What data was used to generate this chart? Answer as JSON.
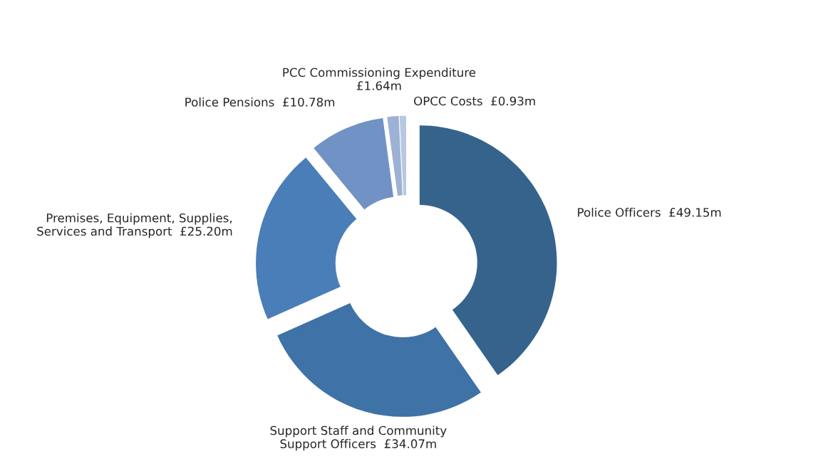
{
  "chart_data": {
    "type": "donut",
    "categories": [
      "Police Officers",
      "Support Staff and Community\nSupport Officers",
      "Premises, Equipment, Supplies,\nServices and Transport",
      "Police Pensions",
      "PCC Commissioning Expenditure",
      "OPCC Costs"
    ],
    "values": [
      49.15,
      34.07,
      25.2,
      10.78,
      1.64,
      0.93
    ],
    "value_labels": [
      "£49.15m",
      "£34.07m",
      "£25.20m",
      "£10.78m",
      "£1.64m",
      "£0.93m"
    ],
    "colors": [
      "#35638c",
      "#3f72a6",
      "#4a7eb8",
      "#7092c4",
      "#9bb2d4",
      "#b7c8e0"
    ],
    "legend": false
  }
}
